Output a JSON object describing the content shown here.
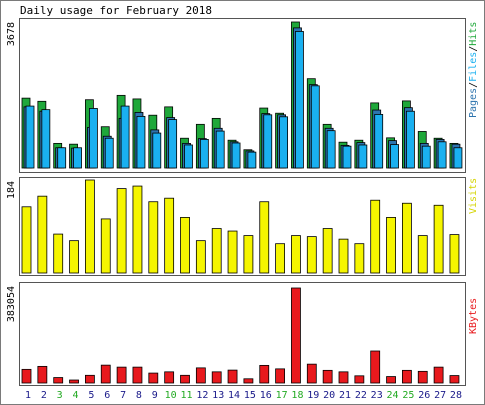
{
  "chart_data": {
    "type": "bar",
    "title": "Daily usage for February 2018",
    "categories": [
      "1",
      "2",
      "3",
      "4",
      "5",
      "6",
      "7",
      "8",
      "9",
      "10",
      "11",
      "12",
      "13",
      "14",
      "15",
      "16",
      "17",
      "18",
      "19",
      "20",
      "21",
      "22",
      "23",
      "24",
      "25",
      "26",
      "27",
      "28"
    ],
    "weekend_days": [
      "3",
      "4",
      "10",
      "11",
      "17",
      "18",
      "24",
      "25"
    ],
    "panels": [
      {
        "id": "hits",
        "max_label": "3678",
        "ylim": [
          0,
          3678
        ],
        "legend": [
          "Pages",
          "Files",
          "Hits"
        ],
        "series": [
          {
            "name": "Hits",
            "values": [
              1760,
              1680,
              620,
              600,
              1720,
              1040,
              1830,
              1740,
              1330,
              1540,
              750,
              1100,
              1250,
              700,
              460,
              1510,
              1380,
              3678,
              2250,
              1100,
              650,
              700,
              1640,
              760,
              1690,
              920,
              750,
              620
            ]
          },
          {
            "name": "Files",
            "values": [
              1560,
              1470,
              510,
              510,
              1500,
              750,
              1560,
              1300,
              880,
              1220,
              580,
              720,
              930,
              630,
              400,
              1340,
              1290,
              3440,
              2070,
              940,
              550,
              580,
              1350,
              590,
              1430,
              550,
              660,
              510
            ]
          },
          {
            "name": "Pages",
            "values": [
              1540,
              1430,
              510,
              500,
              1020,
              800,
              1250,
              1400,
              960,
              1270,
              620,
              740,
              1000,
              660,
              430,
              1370,
              1340,
              3530,
              2100,
              1000,
              570,
              640,
              1460,
              690,
              1520,
              620,
              720,
              600
            ]
          }
        ]
      },
      {
        "id": "visits",
        "max_label": "184",
        "ylim": [
          0,
          184
        ],
        "legend": [
          "Visits"
        ],
        "series": [
          {
            "name": "Visits",
            "values": [
              131,
              152,
              77,
              64,
              184,
              107,
              167,
              172,
              141,
              148,
              110,
              64,
              88,
              83,
              74,
              141,
              58,
              74,
              72,
              88,
              67,
              58,
              144,
              110,
              138,
              74,
              134,
              76
            ]
          }
        ]
      },
      {
        "id": "kbytes",
        "max_label": "383054",
        "ylim": [
          0,
          383054
        ],
        "legend": [
          "KBytes"
        ],
        "series": [
          {
            "name": "KBytes",
            "values": [
              55000,
              67000,
              22000,
              12000,
              31000,
              72000,
              64000,
              64000,
              40000,
              45000,
              31000,
              61000,
              45000,
              52000,
              17000,
              71000,
              57000,
              383054,
              76000,
              51000,
              45000,
              29000,
              129000,
              26000,
              51000,
              47000,
              64000,
              30000
            ]
          }
        ]
      }
    ],
    "colors": {
      "hits": "#1fa83a",
      "files": "#1ab0f0",
      "pages": "#2d74ae",
      "visits": "#f5f500",
      "kbytes": "#e8191d",
      "weekend_day": "#22aa22",
      "weekday": "#1a1a8a",
      "frame": "#555555"
    }
  }
}
